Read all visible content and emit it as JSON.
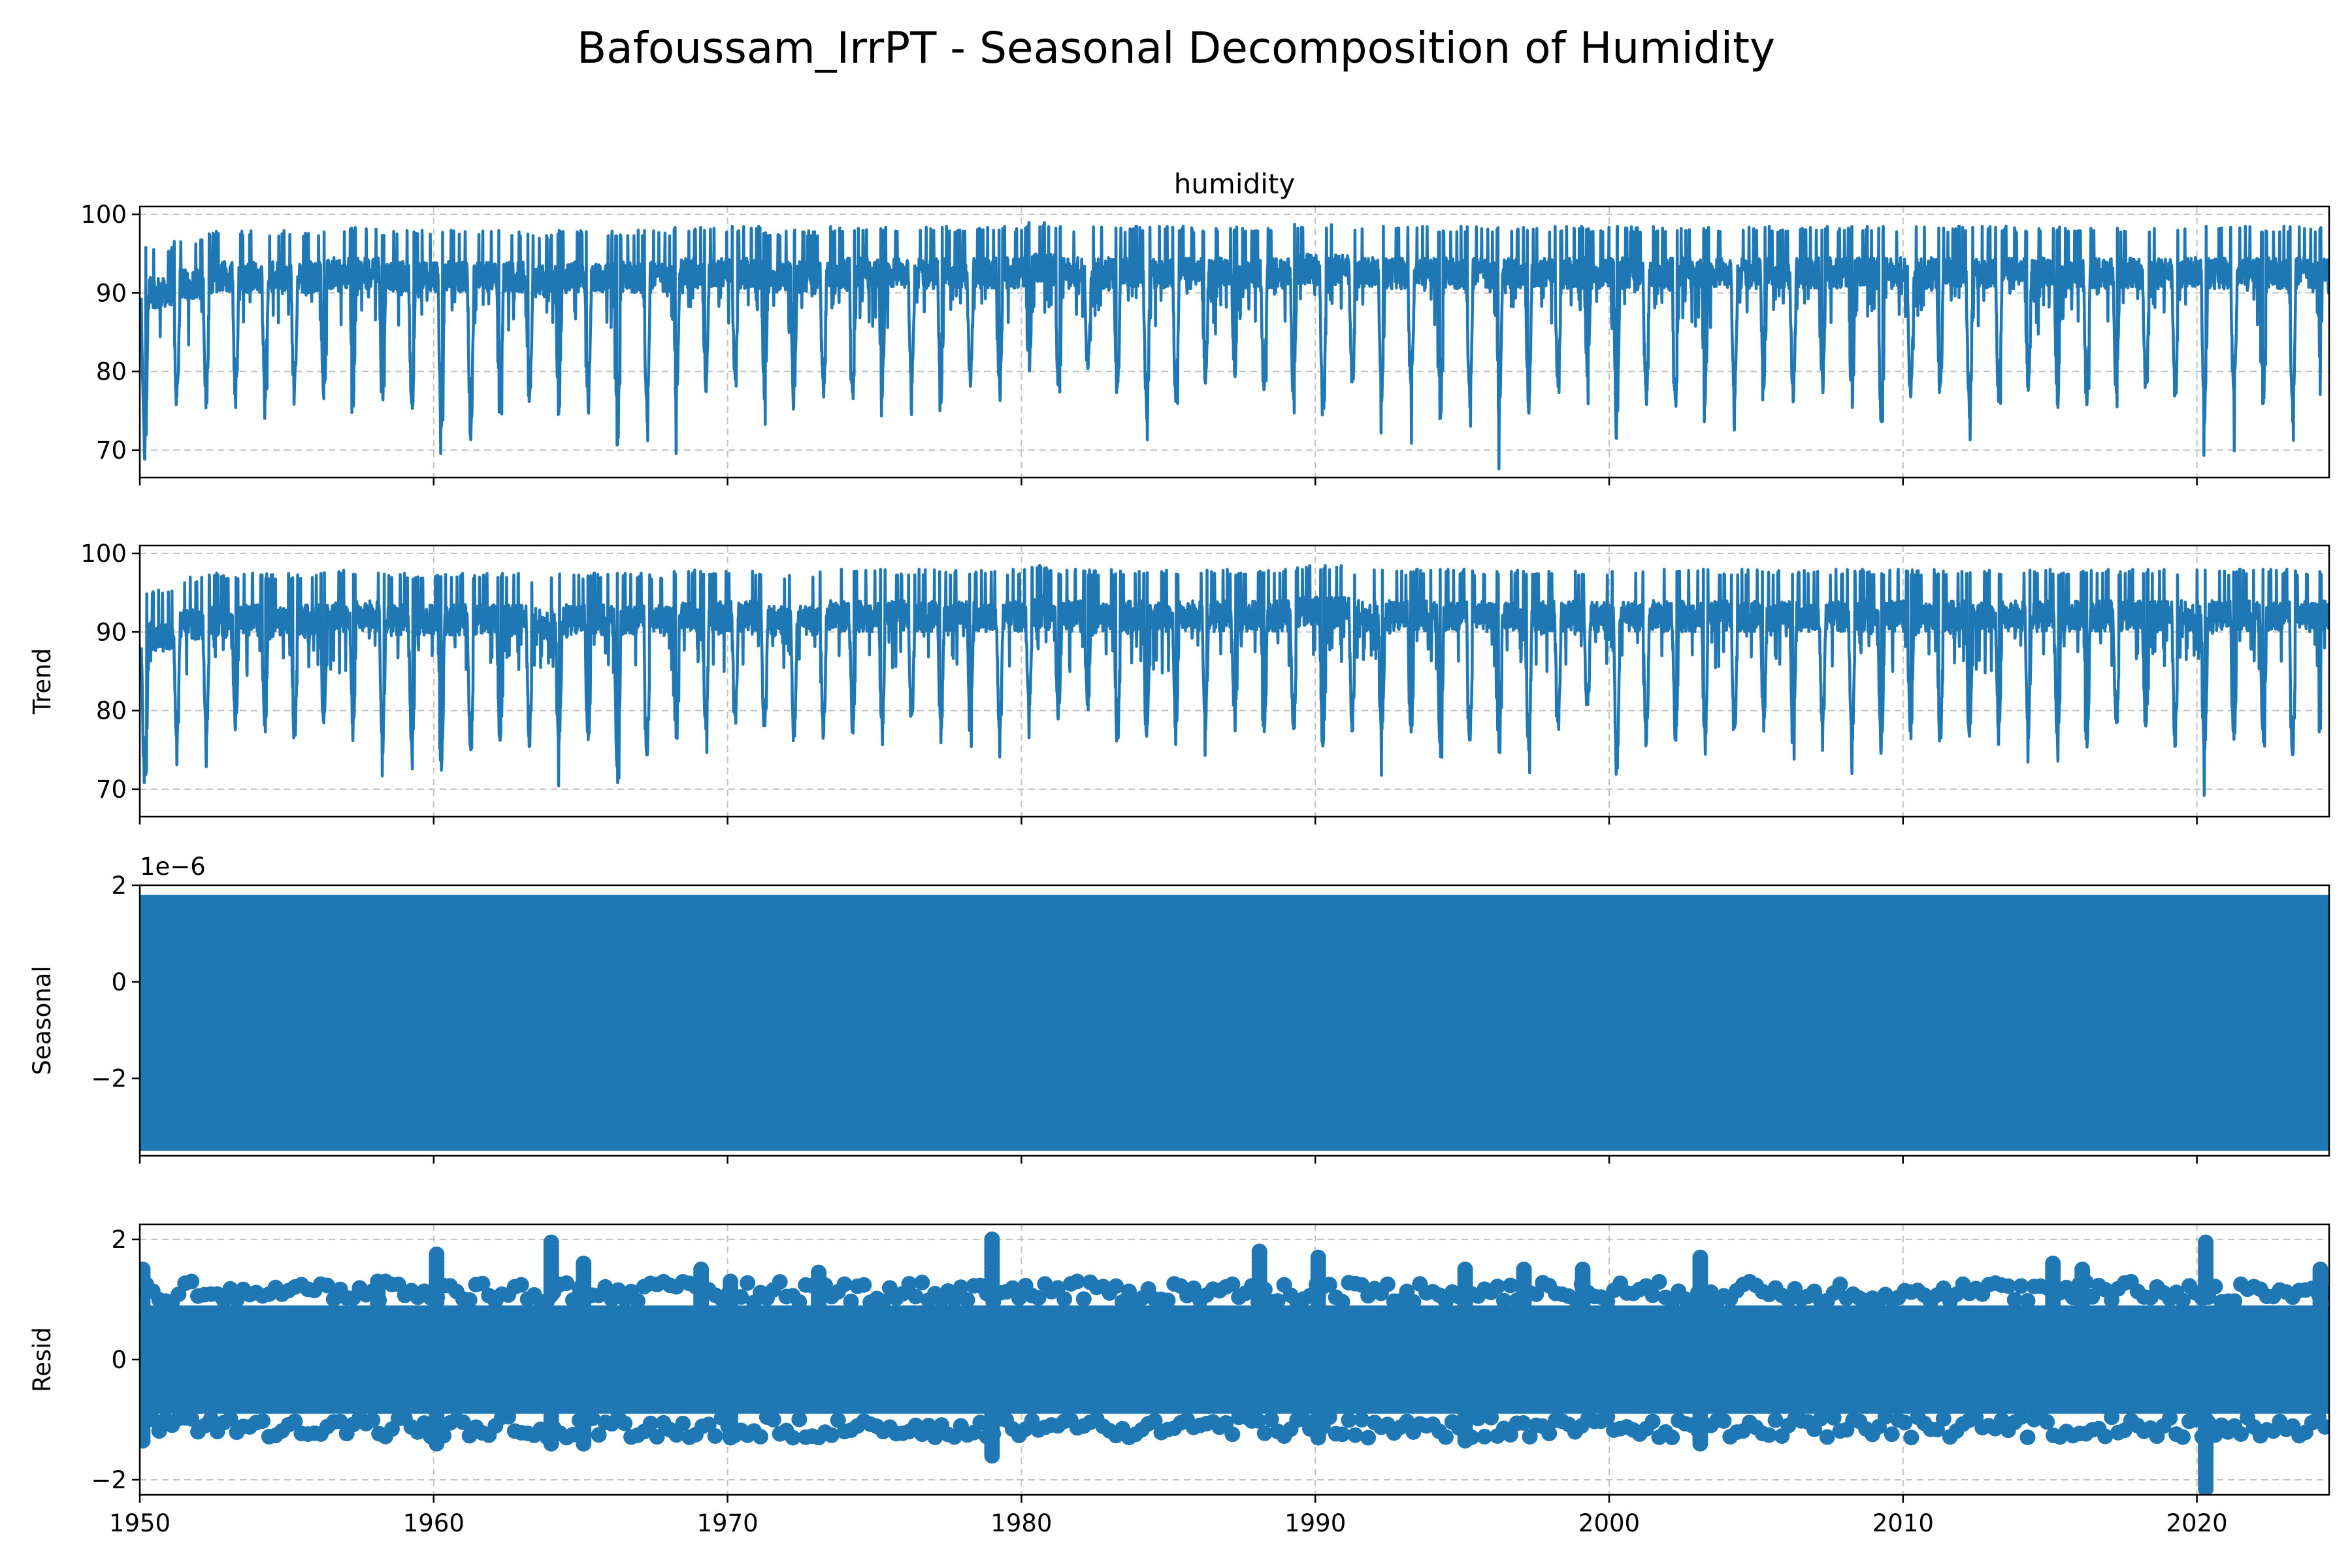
{
  "title": "Bafoussam_IrrPT - Seasonal Decomposition of Humidity",
  "line_color": "#1f77b4",
  "chart_data": [
    {
      "type": "line",
      "title": "humidity",
      "ylabel": "",
      "x_range": [
        1950,
        2024.5
      ],
      "ylim": [
        66.5,
        101
      ],
      "yticks": [
        70,
        80,
        90,
        100
      ],
      "ytick_labels": [
        "70",
        "80",
        "90",
        "100"
      ],
      "xticks": [
        1950,
        1960,
        1970,
        1980,
        1990,
        2000,
        2010,
        2020
      ],
      "grid": true,
      "pattern": "annual cycle: mostly 88-99 with dry-season dips to 70-80 each year",
      "series": [
        {
          "x": [
            1950.05,
            1951.15,
            1952.15,
            1953.15,
            1954.15,
            1955.15,
            1956.15,
            1957.15,
            1958.15,
            1959.15,
            1960.15,
            1961.15,
            1962.15,
            1963.15,
            1964.15,
            1965.15,
            1966.15,
            1967.15,
            1968.15,
            1969.15,
            1970.15,
            1971.15,
            1972.15,
            1973.15,
            1974.15,
            1975.15,
            1976.15,
            1977.15,
            1978.15,
            1979.15,
            1980.15,
            1981.15,
            1982.15,
            1983.15,
            1984.15,
            1985.15,
            1986.15,
            1987.15,
            1988.15,
            1989.15,
            1990.15,
            1991.15,
            1992.15,
            1993.15,
            1994.15,
            1995.15,
            1996.15,
            1997.15,
            1998.15,
            1999.15,
            2000.15,
            2001.15,
            2002.15,
            2003.15,
            2004.15,
            2005.15,
            2006.15,
            2007.15,
            2008.15,
            2009.15,
            2010.15,
            2011.15,
            2012.15,
            2013.15,
            2014.15,
            2015.15,
            2016.15,
            2017.15,
            2018.15,
            2019.15,
            2020.15,
            2021.15,
            2022.15,
            2023.15,
            2024.15
          ],
          "y_min": [
            68,
            75,
            75,
            75,
            76,
            75,
            76,
            75,
            74,
            74,
            72,
            71,
            74,
            75,
            73,
            75,
            69.5,
            73,
            75,
            76,
            78,
            76,
            75,
            76,
            76,
            76,
            77,
            75,
            78,
            76,
            79,
            77,
            79,
            75,
            74,
            75,
            77,
            79,
            77,
            75,
            72,
            77,
            75,
            76,
            73,
            75,
            73,
            73,
            77,
            79,
            71,
            75,
            75,
            75,
            75,
            77,
            76,
            77,
            74,
            72,
            75,
            75,
            74,
            75,
            76,
            75,
            75,
            76,
            76,
            75,
            72,
            75,
            75,
            73,
            74
          ],
          "y_max": [
            96,
            97,
            98,
            98,
            98,
            98,
            98.5,
            98.5,
            98,
            98,
            98,
            98,
            98,
            97.5,
            98,
            98,
            98,
            98,
            98.5,
            98.5,
            98.5,
            98,
            98,
            98.5,
            98.5,
            98.5,
            98.5,
            98.5,
            98.5,
            98.5,
            99,
            98.5,
            98.5,
            98.5,
            98.5,
            98.5,
            98.5,
            98.5,
            98.5,
            99,
            99,
            98.5,
            98.5,
            98.5,
            98.5,
            98.5,
            98.5,
            98.5,
            98.5,
            98.5,
            98.5,
            98.5,
            98.5,
            98.5,
            98.5,
            98.5,
            98.5,
            98.5,
            98.5,
            98.5,
            98.5,
            98.5,
            98.5,
            98.5,
            98.5,
            98.5,
            98.5,
            98.5,
            98.5,
            98.5,
            98.5,
            98.5,
            98.5,
            98.5,
            98.5
          ]
        }
      ]
    },
    {
      "type": "line",
      "title": "",
      "ylabel": "Trend",
      "x_range": [
        1950,
        2024.5
      ],
      "ylim": [
        66.5,
        101
      ],
      "yticks": [
        70,
        80,
        90,
        100
      ],
      "ytick_labels": [
        "70",
        "80",
        "90",
        "100"
      ],
      "xticks": [
        1950,
        1960,
        1970,
        1980,
        1990,
        2000,
        2010,
        2020
      ],
      "grid": true,
      "pattern": "nearly identical to humidity (smoothed)",
      "series": [
        {
          "x": [
            1950.05,
            1951.15,
            1952.15,
            1953.15,
            1954.15,
            1955.15,
            1956.15,
            1957.15,
            1958.15,
            1959.15,
            1960.15,
            1961.15,
            1962.15,
            1963.15,
            1964.15,
            1965.15,
            1966.15,
            1967.15,
            1968.15,
            1969.15,
            1970.15,
            1971.15,
            1972.15,
            1973.15,
            1974.15,
            1975.15,
            1976.15,
            1977.15,
            1978.15,
            1979.15,
            1980.15,
            1981.15,
            1982.15,
            1983.15,
            1984.15,
            1985.15,
            1986.15,
            1987.15,
            1988.15,
            1989.15,
            1990.15,
            1991.15,
            1992.15,
            1993.15,
            1994.15,
            1995.15,
            1996.15,
            1997.15,
            1998.15,
            1999.15,
            2000.15,
            2001.15,
            2002.15,
            2003.15,
            2004.15,
            2005.15,
            2006.15,
            2007.15,
            2008.15,
            2009.15,
            2010.15,
            2011.15,
            2012.15,
            2013.15,
            2014.15,
            2015.15,
            2016.15,
            2017.15,
            2018.15,
            2019.15,
            2020.15,
            2021.15,
            2022.15,
            2023.15,
            2024.15
          ],
          "y_min": [
            68.5,
            75,
            75,
            75.5,
            76,
            75.5,
            76,
            75.5,
            74,
            74,
            72,
            72,
            74,
            75,
            73.5,
            75,
            69.5,
            73,
            75,
            76,
            78,
            76,
            75.5,
            76,
            76,
            76.5,
            77,
            75.5,
            78,
            76,
            79,
            77,
            79,
            75,
            74,
            75,
            77,
            79,
            77,
            75,
            73,
            77,
            75,
            76,
            73,
            75,
            73,
            73,
            77,
            79,
            71,
            75,
            75,
            75,
            75,
            77,
            76,
            77,
            74,
            72,
            75,
            75,
            74,
            75,
            76,
            75,
            75,
            76,
            76,
            75,
            72,
            75,
            75,
            73,
            74
          ],
          "y_max": [
            95.5,
            97,
            97.5,
            97.5,
            97.5,
            97.5,
            98,
            98,
            97.5,
            97.5,
            97.5,
            97.5,
            97.5,
            97,
            97.5,
            97.5,
            97.5,
            97.5,
            98,
            98,
            98,
            97.5,
            97.5,
            98,
            98,
            98,
            98,
            98,
            98,
            98,
            98.5,
            98,
            98,
            98,
            98,
            98,
            98,
            98,
            98,
            98.5,
            98.5,
            98,
            98,
            98,
            98,
            98,
            98,
            98,
            98,
            98,
            98,
            98,
            98,
            98,
            98,
            98,
            98,
            98,
            98,
            98,
            98,
            98,
            98,
            98,
            98,
            98,
            98,
            98,
            98,
            98,
            98,
            98,
            98,
            98,
            98
          ]
        }
      ]
    },
    {
      "type": "area",
      "title": "",
      "ylabel": "Seasonal",
      "offset_label": "1e−6",
      "x_range": [
        1950,
        2024.5
      ],
      "ylim": [
        -3.6,
        2.0
      ],
      "yticks": [
        -2,
        0,
        2
      ],
      "ytick_labels": [
        "−2",
        "0",
        "2"
      ],
      "xticks": [
        1950,
        1960,
        1970,
        1980,
        1990,
        2000,
        2010,
        2020
      ],
      "grid": false,
      "band": {
        "min": -3.5,
        "max": 1.8
      }
    },
    {
      "type": "scatter",
      "title": "",
      "ylabel": "Resid",
      "x_range": [
        1950,
        2024.5
      ],
      "ylim": [
        -2.25,
        2.25
      ],
      "yticks": [
        -2,
        0,
        2
      ],
      "ytick_labels": [
        "−2",
        "0",
        "2"
      ],
      "xticks": [
        1950,
        1960,
        1970,
        1980,
        1990,
        2000,
        2010,
        2020
      ],
      "xtick_labels": [
        "1950",
        "1960",
        "1970",
        "1980",
        "1990",
        "2000",
        "2010",
        "2020"
      ],
      "grid": true,
      "band": {
        "min": -0.9,
        "max": 0.9
      },
      "outliers": [
        {
          "x": 1950.1,
          "y": 1.5
        },
        {
          "x": 1950.1,
          "y": -1.35
        },
        {
          "x": 1958.1,
          "y": 1.3
        },
        {
          "x": 1960.1,
          "y": 1.75
        },
        {
          "x": 1960.1,
          "y": -1.4
        },
        {
          "x": 1964.0,
          "y": 1.95
        },
        {
          "x": 1964.0,
          "y": -1.4
        },
        {
          "x": 1965.1,
          "y": 1.6
        },
        {
          "x": 1965.1,
          "y": -1.4
        },
        {
          "x": 1969.1,
          "y": 1.5
        },
        {
          "x": 1970.1,
          "y": 1.3
        },
        {
          "x": 1970.1,
          "y": -1.3
        },
        {
          "x": 1973.1,
          "y": 1.45
        },
        {
          "x": 1979.0,
          "y": 2.0
        },
        {
          "x": 1979.0,
          "y": -1.6
        },
        {
          "x": 1988.1,
          "y": 1.8
        },
        {
          "x": 1990.1,
          "y": 1.7
        },
        {
          "x": 1990.1,
          "y": -1.3
        },
        {
          "x": 1995.1,
          "y": 1.5
        },
        {
          "x": 1995.1,
          "y": -1.35
        },
        {
          "x": 1997.1,
          "y": 1.5
        },
        {
          "x": 1999.1,
          "y": 1.5
        },
        {
          "x": 2003.1,
          "y": 1.7
        },
        {
          "x": 2003.1,
          "y": -1.4
        },
        {
          "x": 2015.1,
          "y": 1.6
        },
        {
          "x": 2016.1,
          "y": 1.5
        },
        {
          "x": 2020.3,
          "y": 1.95
        },
        {
          "x": 2020.3,
          "y": -1.8
        },
        {
          "x": 2020.3,
          "y": -2.15
        },
        {
          "x": 2024.2,
          "y": 1.5
        }
      ]
    }
  ]
}
